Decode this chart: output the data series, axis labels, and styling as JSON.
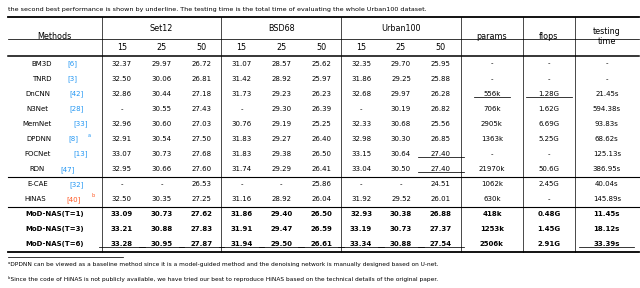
{
  "title_text": "the second best performance is shown by underline. The testing time is the total time of evaluating the whole Urban100 dataset.",
  "rows": [
    {
      "method": "BM3D",
      "ref": "[6]",
      "ref_color": "#2196F3",
      "set12": [
        "32.37",
        "29.97",
        "26.72"
      ],
      "bsd68": [
        "31.07",
        "28.57",
        "25.62"
      ],
      "urban100": [
        "32.35",
        "29.70",
        "25.95"
      ],
      "params": "-",
      "flops": "-",
      "time": "-",
      "bold": false,
      "sup": null
    },
    {
      "method": "TNRD",
      "ref": "[3]",
      "ref_color": "#2196F3",
      "set12": [
        "32.50",
        "30.06",
        "26.81"
      ],
      "bsd68": [
        "31.42",
        "28.92",
        "25.97"
      ],
      "urban100": [
        "31.86",
        "29.25",
        "25.88"
      ],
      "params": "-",
      "flops": "-",
      "time": "-",
      "bold": false,
      "sup": null
    },
    {
      "method": "DnCNN",
      "ref": "[42]",
      "ref_color": "#2196F3",
      "set12": [
        "32.86",
        "30.44",
        "27.18"
      ],
      "bsd68": [
        "31.73",
        "29.23",
        "26.23"
      ],
      "urban100": [
        "32.68",
        "29.97",
        "26.28"
      ],
      "params": "556k",
      "flops": "1.28G",
      "time": "21.45s",
      "bold": false,
      "sup": null,
      "ul_params": true,
      "ul_flops": true,
      "ul_params_n3": false
    },
    {
      "method": "N3Net",
      "ref": "[28]",
      "ref_color": "#2196F3",
      "set12": [
        "-",
        "30.55",
        "27.43"
      ],
      "bsd68": [
        "-",
        "29.30",
        "26.39"
      ],
      "urban100": [
        "-",
        "30.19",
        "26.82"
      ],
      "params": "706k",
      "flops": "1.62G",
      "time": "594.38s",
      "bold": false,
      "sup": null,
      "ul_params": false,
      "ul_flops": false
    },
    {
      "method": "MemNet",
      "ref": "[33]",
      "ref_color": "#2196F3",
      "set12": [
        "32.96",
        "30.60",
        "27.03"
      ],
      "bsd68": [
        "30.76",
        "29.19",
        "25.25"
      ],
      "urban100": [
        "32.33",
        "30.68",
        "25.56"
      ],
      "params": "2905k",
      "flops": "6.69G",
      "time": "93.83s",
      "bold": false,
      "sup": null
    },
    {
      "method": "DPDNN",
      "ref": "[8]",
      "ref_color": "#2196F3",
      "set12": [
        "32.91",
        "30.54",
        "27.50"
      ],
      "bsd68": [
        "31.83",
        "29.27",
        "26.40"
      ],
      "urban100": [
        "32.98",
        "30.30",
        "26.85"
      ],
      "params": "1363k",
      "flops": "5.25G",
      "time": "68.62s",
      "bold": false,
      "sup": "a"
    },
    {
      "method": "FOCNet",
      "ref": "[13]",
      "ref_color": "#2196F3",
      "set12": [
        "33.07",
        "30.73",
        "27.68"
      ],
      "bsd68": [
        "31.83",
        "29.38",
        "26.50"
      ],
      "urban100": [
        "33.15",
        "30.64",
        "27.40"
      ],
      "params": "-",
      "flops": "-",
      "time": "125.13s",
      "bold": false,
      "sup": null,
      "ul_u100_50": true
    },
    {
      "method": "RDN",
      "ref": "[47]",
      "ref_color": "#2196F3",
      "set12": [
        "32.95",
        "30.66",
        "27.60"
      ],
      "bsd68": [
        "31.74",
        "29.29",
        "26.41"
      ],
      "urban100": [
        "33.04",
        "30.50",
        "27.40"
      ],
      "params": "21970k",
      "flops": "50.6G",
      "time": "386.95s",
      "bold": false,
      "sup": null,
      "ul_u100_50": true
    },
    {
      "method": "E-CAE",
      "ref": "[32]",
      "ref_color": "#2196F3",
      "set12": [
        "-",
        "-",
        "26.53"
      ],
      "bsd68": [
        "-",
        "-",
        "25.86"
      ],
      "urban100": [
        "-",
        "-",
        "24.51"
      ],
      "params": "1062k",
      "flops": "2.45G",
      "time": "40.04s",
      "bold": false,
      "sup": null
    },
    {
      "method": "HiNAS",
      "ref": "[40]",
      "ref_color": "#FF5722",
      "set12": [
        "32.50",
        "30.35",
        "27.25"
      ],
      "bsd68": [
        "31.16",
        "28.92",
        "26.04"
      ],
      "urban100": [
        "31.92",
        "29.52",
        "26.01"
      ],
      "params": "630k",
      "flops": "-",
      "time": "145.89s",
      "bold": false,
      "sup": "b"
    },
    {
      "method": "MoD-NAS(T=1)",
      "ref": null,
      "ref_color": null,
      "set12": [
        "33.09",
        "30.73",
        "27.62"
      ],
      "bsd68": [
        "31.86",
        "29.40",
        "26.50"
      ],
      "urban100": [
        "32.93",
        "30.38",
        "26.88"
      ],
      "params": "418k",
      "flops": "0.48G",
      "time": "11.45s",
      "bold": true,
      "sup": null,
      "bold_params": true,
      "bold_flops": true,
      "bold_time": true
    },
    {
      "method": "MoD-NAS(T=3)",
      "ref": null,
      "ref_color": null,
      "set12": [
        "33.21",
        "30.88",
        "27.83"
      ],
      "bsd68": [
        "31.91",
        "29.47",
        "26.59"
      ],
      "urban100": [
        "33.19",
        "30.73",
        "27.37"
      ],
      "params": "1253k",
      "flops": "1.45G",
      "time": "18.12s",
      "bold": true,
      "sup": null
    },
    {
      "method": "MoD-NAS(T=6)",
      "ref": null,
      "ref_color": null,
      "set12": [
        "33.28",
        "30.95",
        "27.87"
      ],
      "bsd68": [
        "31.94",
        "29.50",
        "26.61"
      ],
      "urban100": [
        "33.34",
        "30.88",
        "27.54"
      ],
      "params": "2506k",
      "flops": "2.91G",
      "time": "33.39s",
      "bold": true,
      "sup": null,
      "ul_all": true
    }
  ],
  "footnote_a": "ᵃDPDNN can be viewed as a baseline method since it is a model-guided method and the denoising network is manually designed based on U-net.",
  "footnote_b": "ᵇSince the code of HiNAS is not publicly available, we have tried our best to reproduce HiNAS based on the technical details of the original paper.",
  "bg_color": "#FFFFFF"
}
